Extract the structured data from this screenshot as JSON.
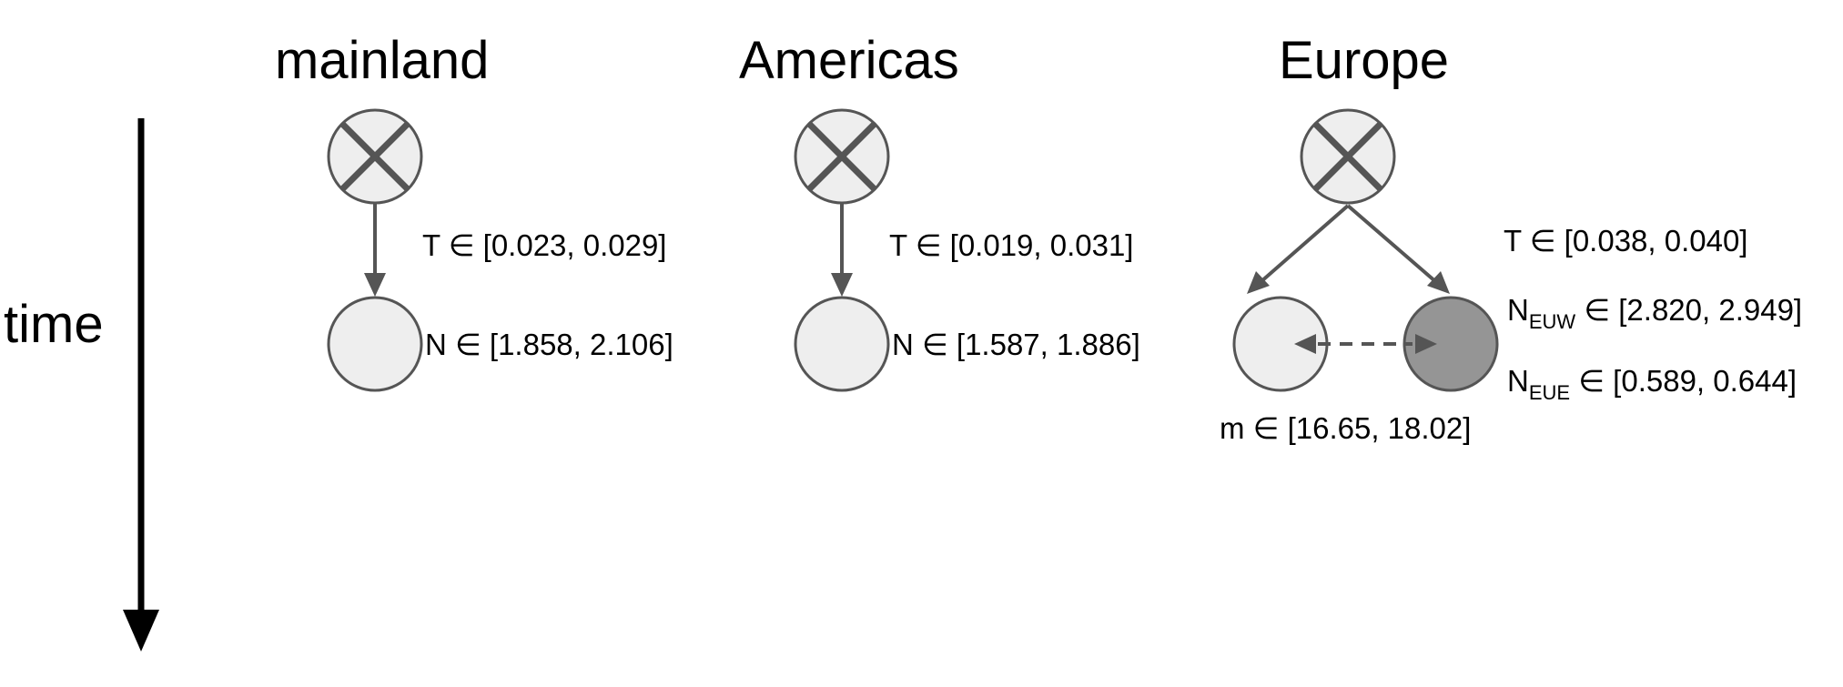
{
  "time_axis": {
    "label": "time"
  },
  "panels": {
    "mainland": {
      "title": "mainland",
      "T": "T ∈ [0.023, 0.029]",
      "N": "N ∈ [1.858, 2.106]"
    },
    "americas": {
      "title": "Americas",
      "T": "T ∈ [0.019, 0.031]",
      "N": "N ∈ [1.587, 1.886]"
    },
    "europe": {
      "title": "Europe",
      "T": "T ∈ [0.038, 0.040]",
      "N_EUW_base": "N",
      "N_EUW_sub": "EUW",
      "N_EUW_range": " ∈ [2.820, 2.949]",
      "N_EUE_base": "N",
      "N_EUE_sub": "EUE",
      "N_EUE_range": " ∈ [0.589, 0.644]",
      "m": "m ∈ [16.65, 18.02]"
    }
  },
  "colors": {
    "node_light": "#eeeeee",
    "node_dark": "#959595",
    "stroke": "#555555"
  }
}
